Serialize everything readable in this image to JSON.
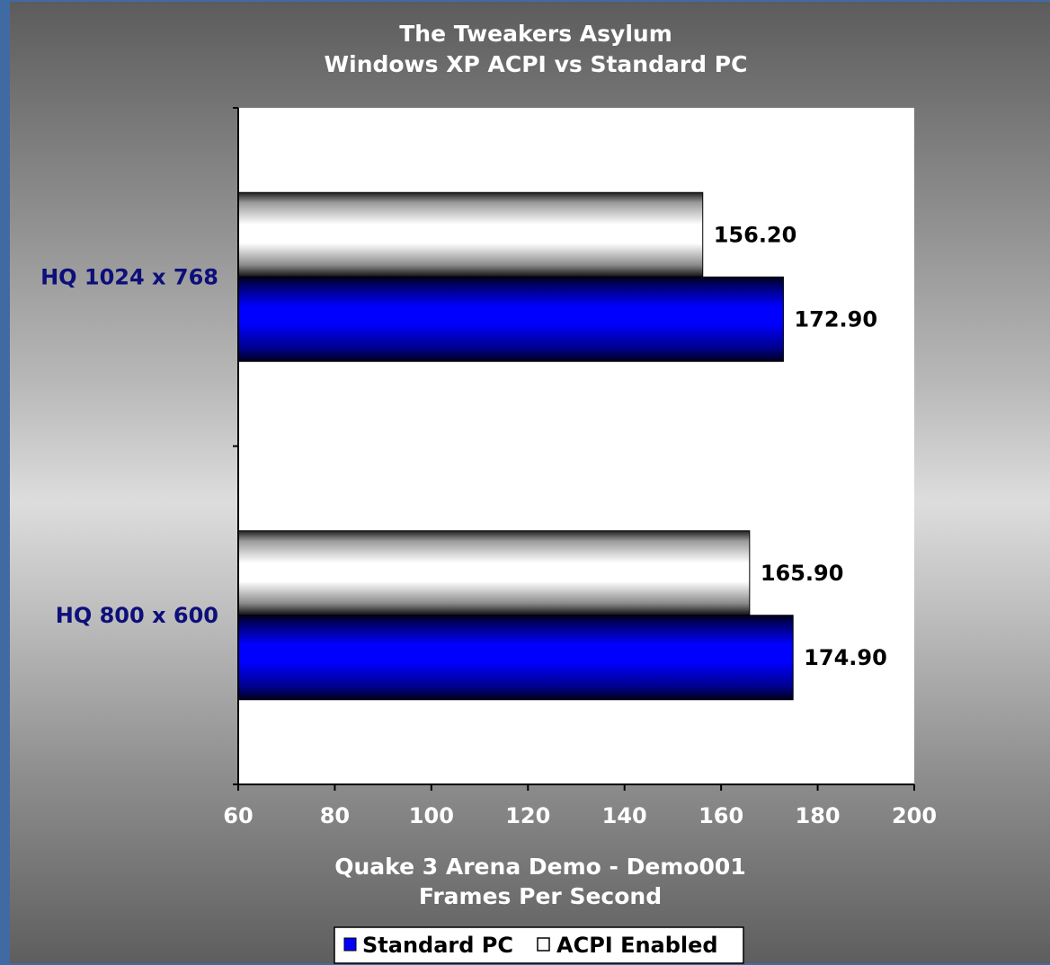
{
  "chart_data": {
    "type": "bar",
    "orientation": "horizontal",
    "title": "The Tweakers Asylum",
    "subtitle": "Windows XP ACPI vs Standard PC",
    "xlabel": "Quake 3 Arena Demo - Demo001",
    "xlabel2": "Frames Per Second",
    "categories": [
      "HQ 1024 x 768",
      "HQ 800 x 600"
    ],
    "series": [
      {
        "name": "Standard PC",
        "values": [
          172.9,
          174.9
        ],
        "value_labels": [
          "172.90",
          "174.90"
        ],
        "color": "#0000ff"
      },
      {
        "name": "ACPI Enabled",
        "values": [
          156.2,
          165.9
        ],
        "value_labels": [
          "156.20",
          "165.90"
        ],
        "color": "#ffffff"
      }
    ],
    "xlim": [
      60,
      200
    ],
    "ticks": [
      60,
      80,
      100,
      120,
      140,
      160,
      180,
      200
    ],
    "tick_labels": [
      "60",
      "80",
      "100",
      "120",
      "140",
      "160",
      "180",
      "200"
    ],
    "grid": false,
    "legend_position": "bottom-center",
    "plot_background": "#ffffff",
    "category_label_color": "#0d0f7a"
  }
}
